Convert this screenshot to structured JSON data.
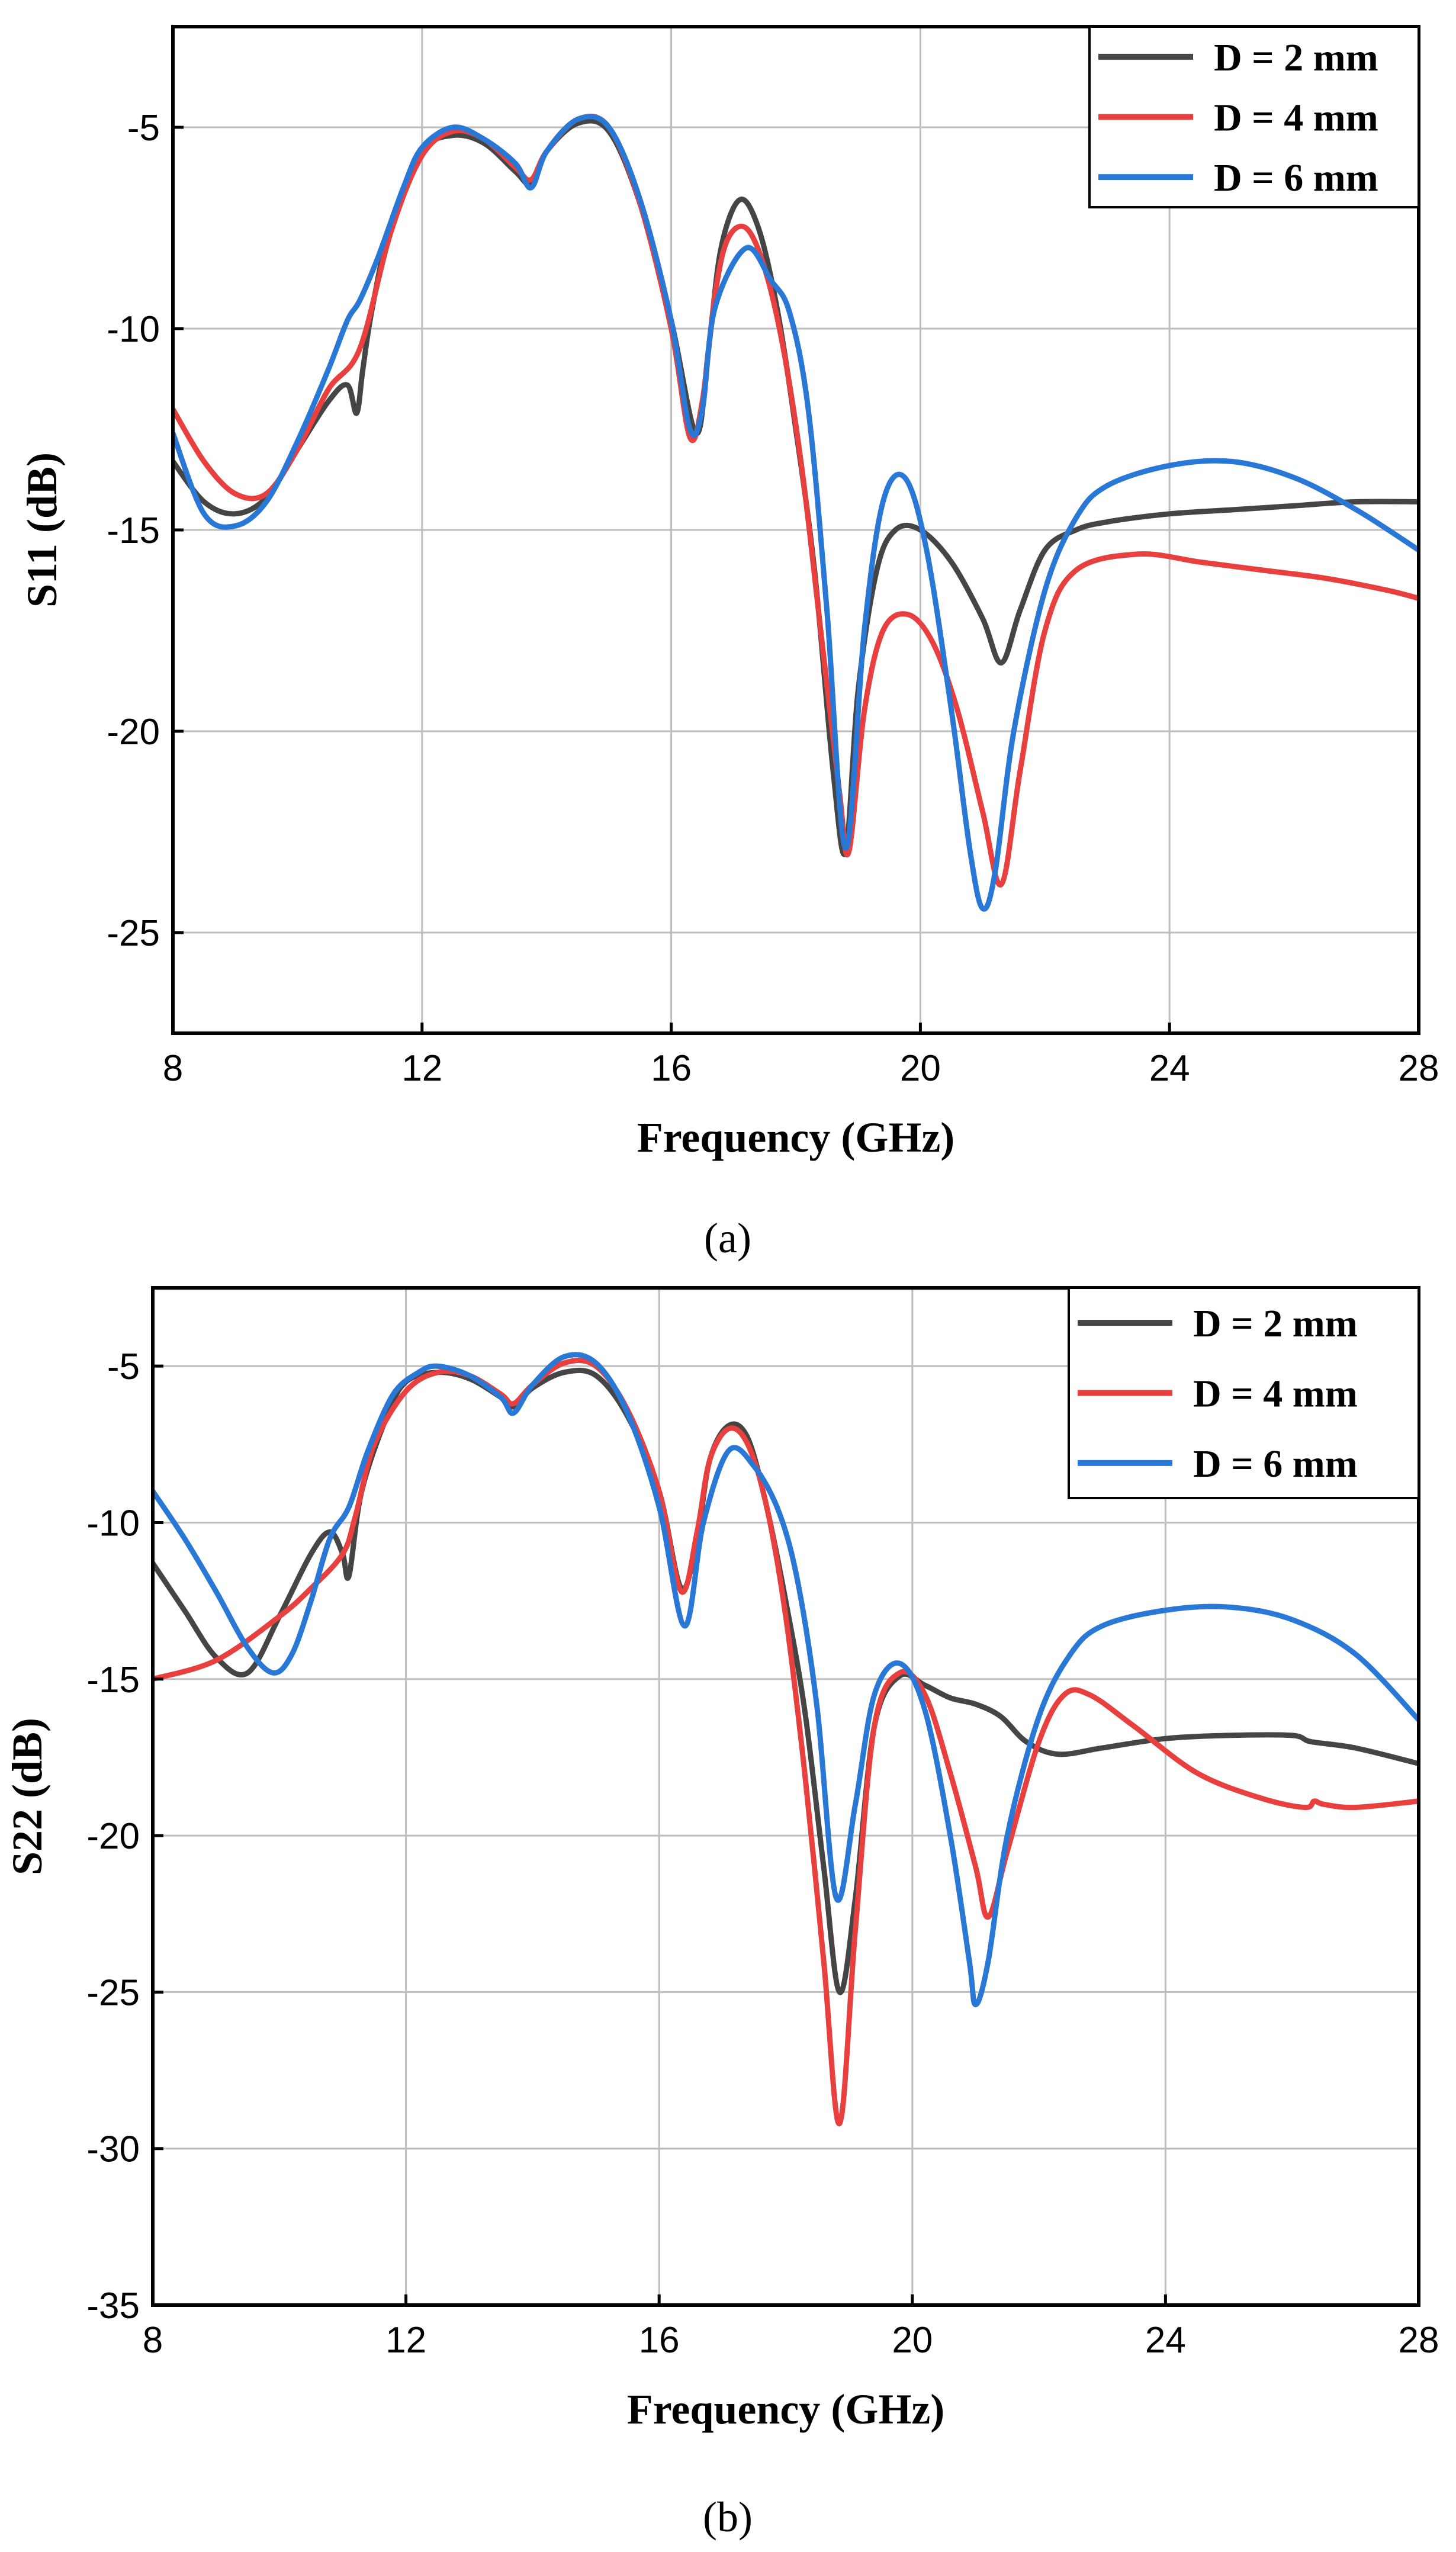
{
  "chart_data": [
    {
      "type": "line",
      "panel_caption": "(a)",
      "xlabel": "Frequency (GHz)",
      "ylabel": "S11 (dB)",
      "xlim": [
        8,
        28
      ],
      "ylim": [
        -27.5,
        -2.5
      ],
      "xticks": [
        8,
        12,
        16,
        20,
        24,
        28
      ],
      "yticks": [
        -5,
        -10,
        -15,
        -20,
        -25
      ],
      "grid": true,
      "legend_position": "top-right",
      "series": [
        {
          "name": "D = 2 mm",
          "color": "#454545",
          "x": [
            8,
            8.5,
            9,
            9.5,
            10,
            10.5,
            10.8,
            10.95,
            11.05,
            11.2,
            11.5,
            12,
            12.5,
            13,
            13.5,
            13.75,
            14,
            14.5,
            15,
            15.5,
            16,
            16.4,
            16.6,
            16.8,
            17.1,
            17.4,
            17.7,
            18,
            18.3,
            18.6,
            18.8,
            19,
            19.3,
            19.6,
            20,
            20.5,
            21,
            21.3,
            21.6,
            22,
            22.5,
            23,
            24,
            25,
            26,
            27,
            28
          ],
          "y": [
            -13.3,
            -14.3,
            -14.6,
            -14.2,
            -13.0,
            -11.8,
            -11.4,
            -12.1,
            -11.0,
            -9.5,
            -7.4,
            -5.6,
            -5.2,
            -5.4,
            -6.1,
            -6.4,
            -5.6,
            -4.9,
            -5.1,
            -6.9,
            -9.8,
            -12.6,
            -10.5,
            -8.0,
            -6.8,
            -7.5,
            -9.5,
            -12.5,
            -16.0,
            -21.0,
            -23.0,
            -19.0,
            -16.0,
            -15.0,
            -15.0,
            -15.8,
            -17.2,
            -18.3,
            -17.0,
            -15.5,
            -15.0,
            -14.8,
            -14.6,
            -14.5,
            -14.4,
            -14.3,
            -14.3
          ]
        },
        {
          "name": "D = 4 mm",
          "color": "#e8403f",
          "x": [
            8,
            8.5,
            9,
            9.5,
            10,
            10.5,
            11,
            11.5,
            12,
            12.5,
            13,
            13.5,
            13.75,
            14,
            14.5,
            15,
            15.5,
            16,
            16.3,
            16.5,
            16.7,
            16.9,
            17.2,
            17.5,
            17.8,
            18.1,
            18.4,
            18.7,
            18.85,
            19.1,
            19.4,
            19.8,
            20.2,
            20.6,
            21,
            21.3,
            21.6,
            22,
            22.5,
            23.5,
            24.5,
            25.5,
            26.5,
            27.5,
            28
          ],
          "y": [
            -12.0,
            -13.3,
            -14.1,
            -14.1,
            -13.0,
            -11.5,
            -10.5,
            -7.6,
            -5.7,
            -5.1,
            -5.3,
            -6.0,
            -6.3,
            -5.6,
            -4.8,
            -5.0,
            -6.9,
            -10.0,
            -12.7,
            -11.8,
            -9.2,
            -7.8,
            -7.5,
            -8.5,
            -10.5,
            -13.5,
            -17.5,
            -21.5,
            -23.0,
            -19.5,
            -17.5,
            -17.1,
            -17.8,
            -19.5,
            -22.0,
            -23.8,
            -21.0,
            -17.5,
            -16.0,
            -15.6,
            -15.8,
            -16.0,
            -16.2,
            -16.5,
            -16.7
          ]
        },
        {
          "name": "D = 6 mm",
          "color": "#2a78d6",
          "x": [
            8,
            8.5,
            9,
            9.5,
            10,
            10.5,
            10.8,
            11,
            11.3,
            11.7,
            12,
            12.5,
            13,
            13.5,
            13.75,
            14,
            14.5,
            15,
            15.5,
            16,
            16.3,
            16.5,
            16.7,
            17.2,
            17.6,
            17.9,
            18.2,
            18.5,
            18.8,
            19.1,
            19.4,
            19.75,
            20.1,
            20.5,
            20.8,
            21.0,
            21.2,
            21.5,
            22,
            22.5,
            23,
            24,
            25,
            26,
            27,
            28
          ],
          "y": [
            -12.6,
            -14.6,
            -14.9,
            -14.3,
            -12.8,
            -11.0,
            -9.8,
            -9.3,
            -8.2,
            -6.5,
            -5.5,
            -5.0,
            -5.3,
            -5.9,
            -6.5,
            -5.6,
            -4.8,
            -5.0,
            -6.8,
            -9.8,
            -12.5,
            -12.0,
            -9.5,
            -8.0,
            -8.8,
            -9.6,
            -12.0,
            -17.0,
            -22.9,
            -17.5,
            -14.3,
            -13.7,
            -15.5,
            -19.5,
            -23.0,
            -24.4,
            -23.5,
            -20.0,
            -16.5,
            -14.7,
            -13.9,
            -13.4,
            -13.3,
            -13.7,
            -14.5,
            -15.5
          ]
        }
      ]
    },
    {
      "type": "line",
      "panel_caption": "(b)",
      "xlabel": "Frequency (GHz)",
      "ylabel": "S22 (dB)",
      "xlim": [
        8,
        28
      ],
      "ylim": [
        -35,
        -2.5
      ],
      "xticks": [
        8,
        12,
        16,
        20,
        24,
        28
      ],
      "yticks": [
        -5,
        -10,
        -15,
        -20,
        -25,
        -30,
        -35
      ],
      "grid": true,
      "legend_position": "top-right",
      "series": [
        {
          "name": "D = 2 mm",
          "color": "#454545",
          "x": [
            8,
            8.5,
            9,
            9.5,
            10,
            10.5,
            10.8,
            11,
            11.1,
            11.3,
            11.7,
            12,
            12.5,
            13,
            13.5,
            13.7,
            14,
            14.5,
            15,
            15.5,
            16,
            16.35,
            16.6,
            16.8,
            17.1,
            17.4,
            17.7,
            18,
            18.3,
            18.6,
            18.85,
            19.1,
            19.4,
            19.8,
            20.2,
            20.6,
            21,
            21.4,
            21.8,
            22.3,
            23,
            24,
            25,
            26,
            26.3,
            27,
            28
          ],
          "y": [
            -11.3,
            -12.8,
            -14.3,
            -14.8,
            -13.0,
            -11.0,
            -10.3,
            -11.0,
            -11.7,
            -9.0,
            -6.6,
            -5.5,
            -5.2,
            -5.4,
            -6.0,
            -6.3,
            -5.7,
            -5.2,
            -5.3,
            -6.6,
            -9.0,
            -12.1,
            -10.5,
            -8.0,
            -6.9,
            -7.3,
            -9.5,
            -12.5,
            -16.0,
            -21.0,
            -25.0,
            -22.0,
            -16.5,
            -14.9,
            -15.2,
            -15.6,
            -15.8,
            -16.2,
            -17.0,
            -17.4,
            -17.2,
            -16.9,
            -16.8,
            -16.8,
            -17.0,
            -17.2,
            -17.7
          ]
        },
        {
          "name": "D = 4 mm",
          "color": "#e8403f",
          "x": [
            8,
            9,
            10,
            10.5,
            11,
            11.2,
            11.5,
            12,
            12.5,
            13,
            13.5,
            13.7,
            14,
            14.5,
            15,
            15.5,
            16,
            16.35,
            16.6,
            16.8,
            17.1,
            17.4,
            17.7,
            18,
            18.3,
            18.6,
            18.85,
            19.1,
            19.4,
            19.8,
            20.2,
            20.6,
            21.0,
            21.2,
            21.5,
            22,
            22.4,
            22.8,
            23.5,
            24.5,
            25.5,
            26.2,
            26.35,
            26.5,
            27,
            28
          ],
          "y": [
            -15.0,
            -14.4,
            -13.0,
            -12.1,
            -11.0,
            -9.8,
            -7.5,
            -5.8,
            -5.2,
            -5.3,
            -5.9,
            -6.2,
            -5.6,
            -4.9,
            -5.0,
            -6.4,
            -9.0,
            -12.2,
            -10.3,
            -8.0,
            -7.0,
            -7.5,
            -9.5,
            -13.0,
            -18.0,
            -24.0,
            -29.2,
            -23.0,
            -16.5,
            -14.8,
            -15.5,
            -18.0,
            -21.0,
            -22.6,
            -20.5,
            -17.0,
            -15.5,
            -15.5,
            -16.5,
            -18.0,
            -18.8,
            -19.1,
            -18.9,
            -19.0,
            -19.1,
            -18.9
          ]
        },
        {
          "name": "D = 6 mm",
          "color": "#2a78d6",
          "x": [
            8,
            8.5,
            9,
            9.5,
            9.9,
            10.2,
            10.5,
            10.8,
            11.1,
            11.4,
            11.8,
            12.2,
            12.5,
            13,
            13.5,
            13.7,
            14,
            14.5,
            15,
            15.5,
            16,
            16.4,
            16.7,
            17.1,
            17.5,
            17.9,
            18.2,
            18.5,
            18.8,
            19.1,
            19.4,
            19.8,
            20.2,
            20.6,
            20.9,
            21.0,
            21.2,
            21.5,
            22,
            22.5,
            23,
            24,
            25,
            26,
            27,
            28
          ],
          "y": [
            -9.0,
            -10.5,
            -12.2,
            -14.0,
            -14.8,
            -14.2,
            -12.5,
            -10.5,
            -9.5,
            -7.7,
            -5.9,
            -5.2,
            -5.0,
            -5.3,
            -6.0,
            -6.5,
            -5.6,
            -4.7,
            -4.9,
            -6.5,
            -9.5,
            -13.3,
            -10.0,
            -7.7,
            -8.2,
            -9.7,
            -12.0,
            -16.0,
            -22.0,
            -19.0,
            -15.5,
            -14.5,
            -16.0,
            -20.0,
            -24.0,
            -25.4,
            -24.0,
            -20.0,
            -16.2,
            -14.2,
            -13.3,
            -12.8,
            -12.7,
            -13.1,
            -14.2,
            -16.3
          ]
        }
      ]
    }
  ]
}
